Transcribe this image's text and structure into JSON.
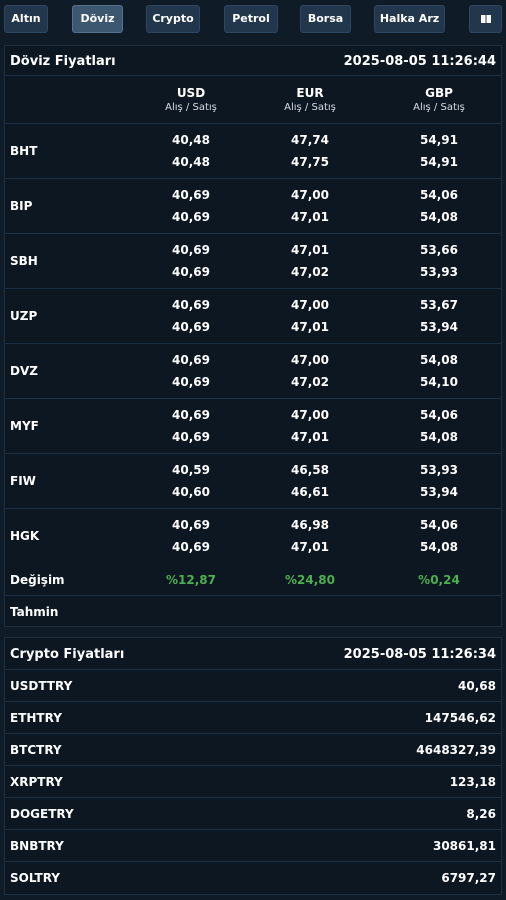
{
  "nav": [
    "Altın",
    "Döviz",
    "Crypto",
    "Petrol",
    "Borsa",
    "Halka Arz"
  ],
  "nav_active": "Döviz",
  "nav_icon": "book-icon",
  "doviz": {
    "title": "Döviz Fiyatları",
    "timestamp": "2025-08-05 11:26:44",
    "columns": [
      {
        "code": "USD",
        "sub": "Alış / Satış"
      },
      {
        "code": "EUR",
        "sub": "Alış / Satış"
      },
      {
        "code": "GBP",
        "sub": "Alış / Satış"
      }
    ],
    "rows": [
      {
        "bank": "BHT",
        "usd": [
          "40,48",
          "40,48"
        ],
        "eur": [
          "47,74",
          "47,75"
        ],
        "gbp": [
          "54,91",
          "54,91"
        ]
      },
      {
        "bank": "BIP",
        "usd": [
          "40,69",
          "40,69"
        ],
        "eur": [
          "47,00",
          "47,01"
        ],
        "gbp": [
          "54,06",
          "54,08"
        ]
      },
      {
        "bank": "SBH",
        "usd": [
          "40,69",
          "40,69"
        ],
        "eur": [
          "47,01",
          "47,02"
        ],
        "gbp": [
          "53,66",
          "53,93"
        ]
      },
      {
        "bank": "UZP",
        "usd": [
          "40,69",
          "40,69"
        ],
        "eur": [
          "47,00",
          "47,01"
        ],
        "gbp": [
          "53,67",
          "53,94"
        ]
      },
      {
        "bank": "DVZ",
        "usd": [
          "40,69",
          "40,69"
        ],
        "eur": [
          "47,00",
          "47,02"
        ],
        "gbp": [
          "54,08",
          "54,10"
        ]
      },
      {
        "bank": "MYF",
        "usd": [
          "40,69",
          "40,69"
        ],
        "eur": [
          "47,00",
          "47,01"
        ],
        "gbp": [
          "54,06",
          "54,08"
        ]
      },
      {
        "bank": "FIW",
        "usd": [
          "40,59",
          "40,60"
        ],
        "eur": [
          "46,58",
          "46,61"
        ],
        "gbp": [
          "53,93",
          "53,94"
        ]
      },
      {
        "bank": "HGK",
        "usd": [
          "40,69",
          "40,69"
        ],
        "eur": [
          "46,98",
          "47,01"
        ],
        "gbp": [
          "54,06",
          "54,08"
        ]
      }
    ],
    "change_label": "Değişim",
    "change": [
      "%12,87",
      "%24,80",
      "%0,24"
    ],
    "forecast_label": "Tahmin"
  },
  "crypto": {
    "title": "Crypto Fiyatları",
    "timestamp": "2025-08-05 11:26:34",
    "rows": [
      {
        "name": "USDTTRY",
        "value": "40,68"
      },
      {
        "name": "ETHTRY",
        "value": "147546,62"
      },
      {
        "name": "BTCTRY",
        "value": "4648327,39"
      },
      {
        "name": "XRPTRY",
        "value": "123,18"
      },
      {
        "name": "DOGETRY",
        "value": "8,26"
      },
      {
        "name": "BNBTRY",
        "value": "30861,81"
      },
      {
        "name": "SOLTRY",
        "value": "6797,27"
      }
    ]
  },
  "colors": {
    "background": "#0f1b27",
    "panel": "#0c1722",
    "button": "#22374c",
    "active_button": "#3d5770",
    "positive": "#4caf50"
  }
}
